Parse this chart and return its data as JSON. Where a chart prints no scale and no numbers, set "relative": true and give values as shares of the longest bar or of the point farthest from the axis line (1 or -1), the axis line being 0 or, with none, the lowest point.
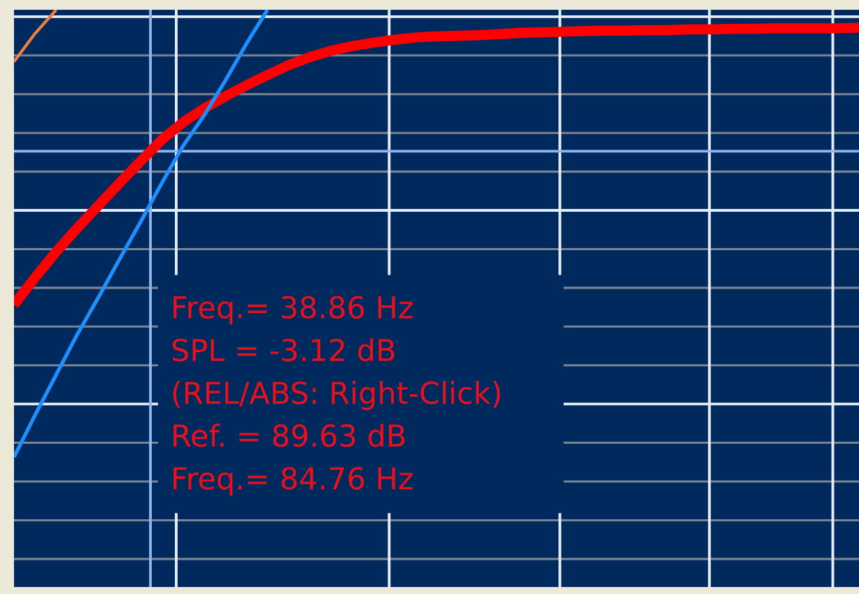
{
  "chart_data": {
    "type": "line",
    "relative": true,
    "categories": [
      null,
      null,
      null,
      null,
      null,
      null,
      null,
      null,
      null,
      null,
      null,
      null,
      null,
      null,
      null,
      null,
      null,
      null,
      null,
      null,
      null,
      null,
      null,
      null,
      null,
      null,
      null,
      null,
      null,
      null,
      null,
      null,
      null,
      null,
      null,
      null,
      null,
      null,
      null,
      null,
      null
    ],
    "series": [
      {
        "color": "#ff0000",
        "values": [
          0.489,
          0.536,
          0.581,
          0.622,
          0.661,
          0.7,
          0.738,
          0.775,
          0.805,
          0.829,
          0.85,
          0.869,
          0.887,
          0.904,
          0.918,
          0.929,
          0.937,
          0.943,
          0.948,
          0.952,
          0.954,
          0.955,
          0.956,
          0.958,
          0.96,
          0.961,
          0.962,
          0.963,
          0.964,
          0.964,
          0.965,
          0.965,
          0.966,
          0.966,
          0.967,
          0.967,
          0.968,
          0.968,
          0.968,
          0.968,
          0.969
        ]
      },
      {
        "color": "#1e8fff",
        "values": [
          0.225,
          0.298,
          0.368,
          0.438,
          0.502,
          0.568,
          0.633,
          0.7,
          0.764,
          0.817,
          0.877,
          0.941,
          1.0,
          null,
          null,
          null,
          null,
          null,
          null,
          null,
          null,
          null,
          null,
          null,
          null,
          null,
          null,
          null,
          null,
          null,
          null,
          null,
          null,
          null,
          null,
          null,
          null,
          null,
          null,
          null,
          null
        ]
      },
      {
        "color": "#f08040",
        "values": [
          0.91,
          0.959,
          1.0,
          null,
          null,
          null,
          null,
          null,
          null,
          null,
          null,
          null,
          null,
          null,
          null,
          null,
          null,
          null,
          null,
          null,
          null,
          null,
          null,
          null,
          null,
          null,
          null,
          null,
          null,
          null,
          null,
          null,
          null,
          null,
          null,
          null,
          null,
          null,
          null,
          null,
          null
        ]
      }
    ],
    "ref_lines": [
      {
        "axis": "y",
        "value": 0.755,
        "color": "#8fb4f0"
      }
    ],
    "annotations": [
      "Freq.= 38.86 Hz",
      "SPL = -3.12 dB",
      "(REL/ABS: Right-Click)",
      "Ref. = 89.63 dB",
      "Freq.= 84.76 Hz"
    ],
    "grid": true,
    "marker": "none",
    "line_style": "solid"
  }
}
